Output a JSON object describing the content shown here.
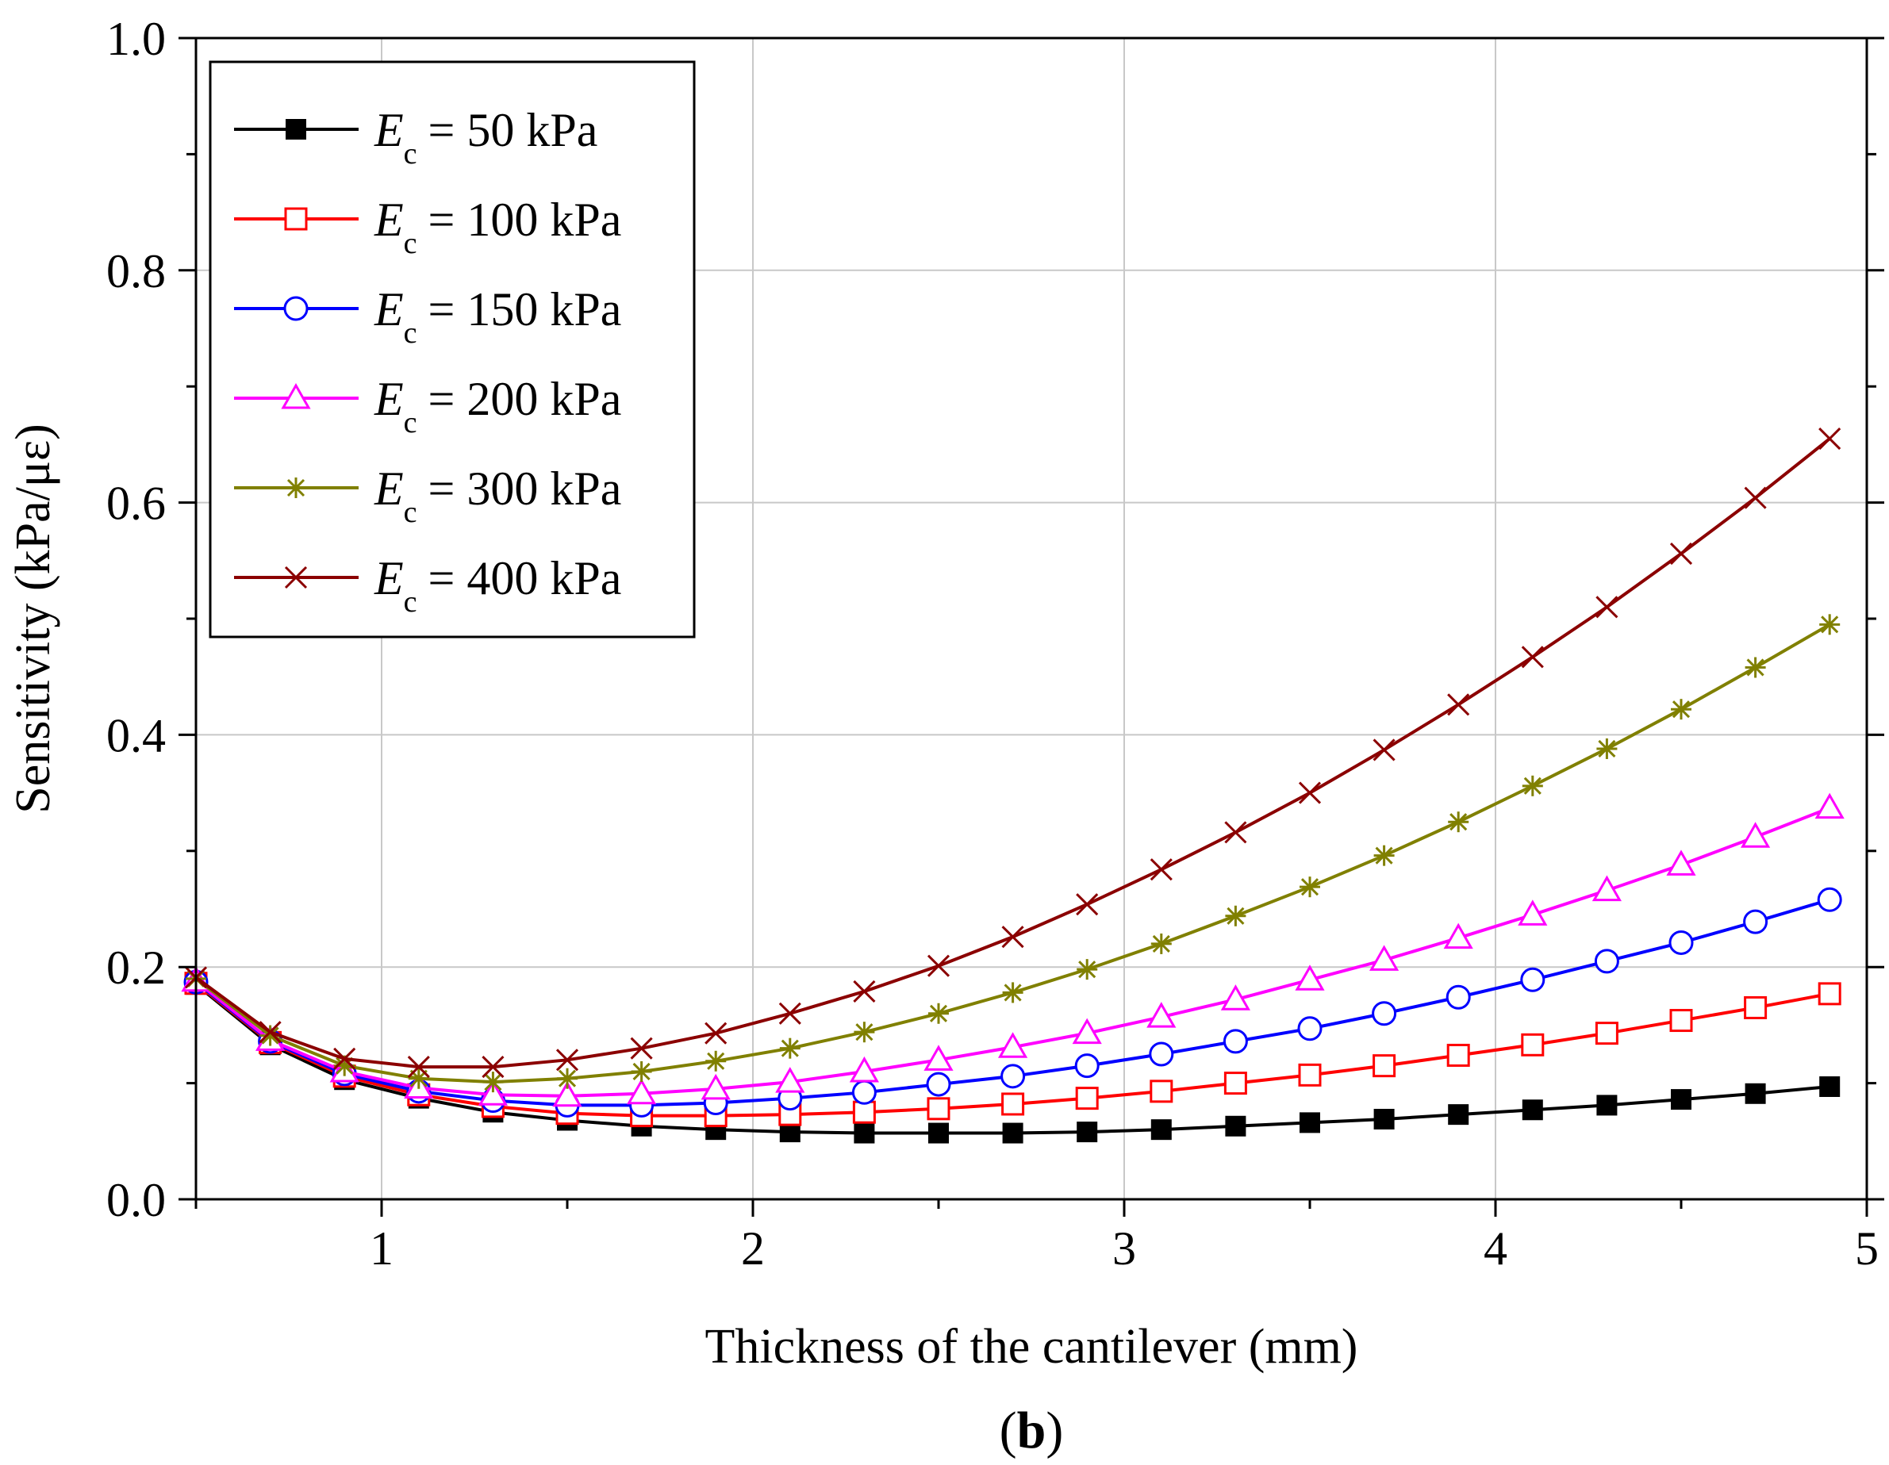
{
  "chart_data": {
    "type": "line",
    "xlabel": "Thickness of the cantilever (mm)",
    "ylabel": "Sensitivity (kPa/με)",
    "panel_label": "b",
    "xlim": [
      0.5,
      5.0
    ],
    "ylim": [
      0.0,
      1.0
    ],
    "x_ticks": [
      "1",
      "2",
      "3",
      "4",
      "5"
    ],
    "y_ticks": [
      "0.0",
      "0.2",
      "0.4",
      "0.6",
      "0.8",
      "1.0"
    ],
    "grid": true,
    "legend_position": "top-left",
    "x": [
      0.5,
      0.7,
      0.9,
      1.1,
      1.3,
      1.5,
      1.7,
      1.9,
      2.1,
      2.3,
      2.5,
      2.7,
      2.9,
      3.1,
      3.3,
      3.5,
      3.7,
      3.9,
      4.1,
      4.3,
      4.5,
      4.7,
      4.9
    ],
    "series": [
      {
        "legend_symbol": "E",
        "legend_subscript": "c",
        "legend_value": "= 50 kPa",
        "color": "#000000",
        "marker": "filled-square",
        "values": [
          0.185,
          0.133,
          0.103,
          0.087,
          0.075,
          0.068,
          0.063,
          0.06,
          0.058,
          0.057,
          0.057,
          0.057,
          0.058,
          0.06,
          0.063,
          0.066,
          0.069,
          0.073,
          0.077,
          0.081,
          0.086,
          0.091,
          0.097
        ]
      },
      {
        "legend_symbol": "E",
        "legend_subscript": "c",
        "legend_value": "= 100 kPa",
        "color": "#ff0000",
        "marker": "open-square",
        "values": [
          0.186,
          0.135,
          0.106,
          0.09,
          0.08,
          0.074,
          0.072,
          0.072,
          0.073,
          0.075,
          0.078,
          0.082,
          0.087,
          0.093,
          0.1,
          0.107,
          0.115,
          0.124,
          0.133,
          0.143,
          0.154,
          0.165,
          0.177
        ]
      },
      {
        "legend_symbol": "E",
        "legend_subscript": "c",
        "legend_value": "= 150 kPa",
        "color": "#0000ff",
        "marker": "open-circle",
        "values": [
          0.187,
          0.136,
          0.108,
          0.093,
          0.085,
          0.081,
          0.081,
          0.083,
          0.087,
          0.092,
          0.099,
          0.106,
          0.115,
          0.125,
          0.136,
          0.147,
          0.16,
          0.174,
          0.189,
          0.205,
          0.221,
          0.239,
          0.258
        ]
      },
      {
        "legend_symbol": "E",
        "legend_subscript": "c",
        "legend_value": "= 200 kPa",
        "color": "#ff00ff",
        "marker": "open-triangle",
        "values": [
          0.188,
          0.137,
          0.11,
          0.096,
          0.09,
          0.089,
          0.091,
          0.095,
          0.101,
          0.11,
          0.12,
          0.131,
          0.143,
          0.157,
          0.172,
          0.189,
          0.206,
          0.225,
          0.245,
          0.266,
          0.288,
          0.312,
          0.337
        ]
      },
      {
        "legend_symbol": "E",
        "legend_subscript": "c",
        "legend_value": "= 300 kPa",
        "color": "#808000",
        "marker": "asterisk",
        "values": [
          0.19,
          0.141,
          0.115,
          0.104,
          0.101,
          0.104,
          0.11,
          0.119,
          0.13,
          0.144,
          0.16,
          0.178,
          0.198,
          0.22,
          0.244,
          0.269,
          0.296,
          0.325,
          0.356,
          0.388,
          0.422,
          0.458,
          0.495
        ]
      },
      {
        "legend_symbol": "E",
        "legend_subscript": "c",
        "legend_value": "= 400 kPa",
        "color": "#8b0000",
        "marker": "cross",
        "values": [
          0.191,
          0.144,
          0.121,
          0.114,
          0.114,
          0.12,
          0.13,
          0.143,
          0.16,
          0.179,
          0.201,
          0.226,
          0.254,
          0.284,
          0.316,
          0.35,
          0.387,
          0.426,
          0.467,
          0.51,
          0.556,
          0.604,
          0.655
        ]
      }
    ]
  }
}
